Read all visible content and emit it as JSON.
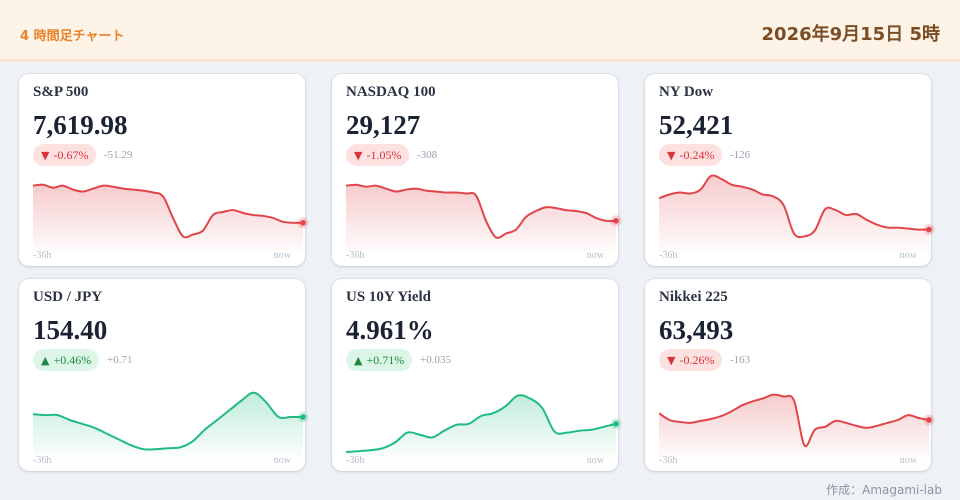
{
  "header": {
    "title": "4 時間足チャート",
    "date": "2026年9月15日 5時"
  },
  "colors": {
    "down": "#e0454b",
    "up": "#1fbb7f",
    "accent": "#e5822a"
  },
  "cards": [
    {
      "name": "S&P 500",
      "value": "7,619.98",
      "direction": "down",
      "arrow": "▼",
      "change_pct": "-0.67%",
      "change_abs": "-51.29",
      "axis_start": "-36h",
      "axis_end": "now",
      "series": [
        68,
        69,
        66,
        68,
        64,
        62,
        65,
        68,
        67,
        65,
        64,
        63,
        61,
        57,
        35,
        16,
        18,
        22,
        38,
        41,
        43,
        40,
        38,
        37,
        35,
        31,
        30,
        30
      ]
    },
    {
      "name": "NASDAQ 100",
      "value": "29,127",
      "direction": "down",
      "arrow": "▼",
      "change_pct": "-1.05%",
      "change_abs": "-308",
      "axis_start": "-36h",
      "axis_end": "now",
      "series": [
        68,
        69,
        67,
        68,
        65,
        62,
        64,
        65,
        63,
        62,
        61,
        61,
        60,
        58,
        32,
        15,
        19,
        23,
        36,
        42,
        46,
        45,
        43,
        42,
        40,
        35,
        32,
        32
      ]
    },
    {
      "name": "NY Dow",
      "value": "52,421",
      "direction": "down",
      "arrow": "▼",
      "change_pct": "-0.24%",
      "change_abs": "-126",
      "axis_start": "-36h",
      "axis_end": "now",
      "series": [
        55,
        59,
        61,
        60,
        64,
        78,
        75,
        69,
        67,
        64,
        59,
        57,
        48,
        19,
        16,
        22,
        44,
        43,
        38,
        39,
        33,
        28,
        25,
        25,
        24,
        23,
        23
      ]
    },
    {
      "name": "USD / JPY",
      "value": "154.40",
      "direction": "up",
      "arrow": "▲",
      "change_pct": "+0.46%",
      "change_abs": "+0.71",
      "axis_start": "-36h",
      "axis_end": "now",
      "series": [
        44,
        43,
        43,
        38,
        34,
        30,
        24,
        18,
        12,
        8,
        8,
        9,
        10,
        16,
        28,
        38,
        48,
        58,
        66,
        56,
        41,
        41,
        41
      ]
    },
    {
      "name": "US 10Y Yield",
      "value": "4.961%",
      "direction": "up",
      "arrow": "▲",
      "change_pct": "+0.71%",
      "change_abs": "+0.035",
      "axis_start": "-36h",
      "axis_end": "now",
      "series": [
        5,
        6,
        7,
        9,
        15,
        25,
        23,
        20,
        27,
        33,
        34,
        42,
        45,
        52,
        63,
        60,
        50,
        26,
        25,
        27,
        28,
        31,
        34
      ]
    },
    {
      "name": "Nikkei 225",
      "value": "63,493",
      "direction": "down",
      "arrow": "▼",
      "change_pct": "-0.26%",
      "change_abs": "-163",
      "axis_start": "-36h",
      "axis_end": "now",
      "series": [
        45,
        38,
        36,
        35,
        37,
        39,
        42,
        47,
        53,
        57,
        60,
        64,
        62,
        58,
        12,
        28,
        31,
        37,
        35,
        32,
        30,
        32,
        35,
        38,
        43,
        40,
        38
      ]
    }
  ],
  "credit": "作成：Amagami-lab"
}
